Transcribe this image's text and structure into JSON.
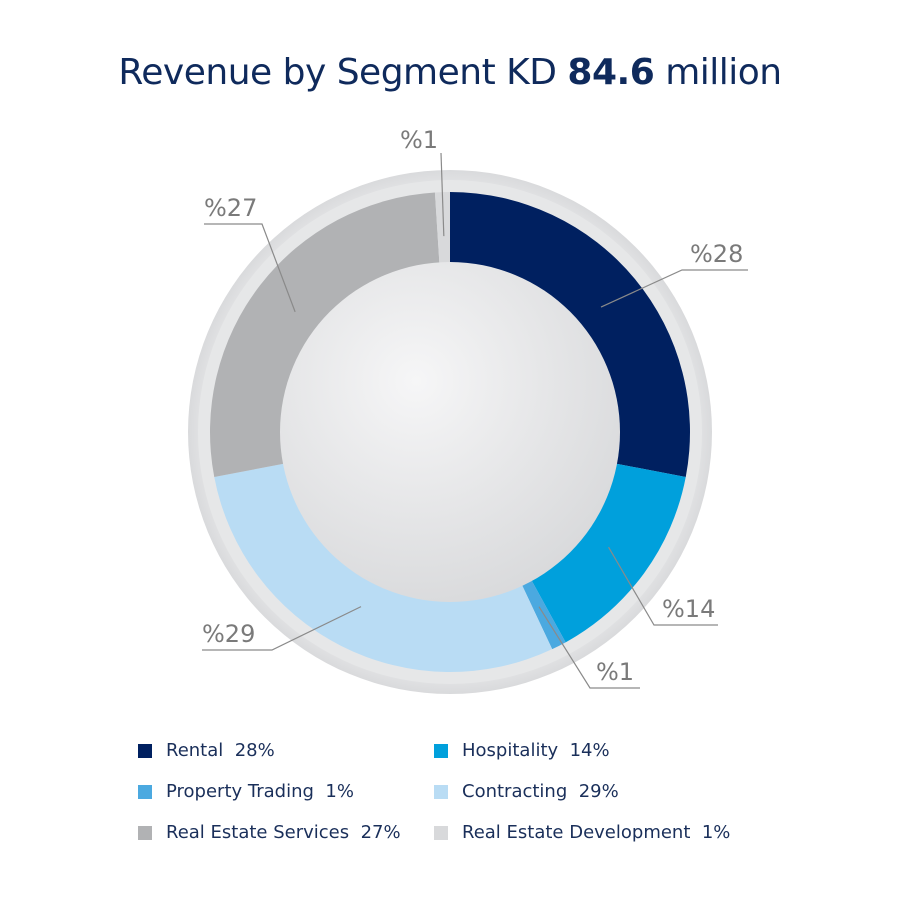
{
  "title": {
    "prefix": "Revenue by Segment KD",
    "value": "84.6",
    "suffix": "million"
  },
  "chart_data": {
    "type": "pie",
    "style": "donut",
    "title": "Revenue by Segment KD 84.6 million",
    "total": "KD 84.6 million",
    "slices": [
      {
        "label": "Rental",
        "value": 28,
        "callout": "%28",
        "legend": "Rental  28%",
        "color": "#002060"
      },
      {
        "label": "Hospitality",
        "value": 14,
        "callout": "%14",
        "legend": "Hospitality  14%",
        "color": "#00a0dc"
      },
      {
        "label": "Property Trading",
        "value": 1,
        "callout": "%1",
        "legend": "Property Trading  1%",
        "color": "#4ba9e0"
      },
      {
        "label": "Contracting",
        "value": 29,
        "callout": "%29",
        "legend": "Contracting  29%",
        "color": "#b9dcf4"
      },
      {
        "label": "Real Estate Services",
        "value": 27,
        "callout": "%27",
        "legend": "Real Estate Services  27%",
        "color": "#b1b2b4"
      },
      {
        "label": "Real Estate Development",
        "value": 1,
        "callout": "%1",
        "legend": "Real Estate Development  1%",
        "color": "#d8d9db"
      }
    ],
    "legend_placement": "bottom"
  }
}
